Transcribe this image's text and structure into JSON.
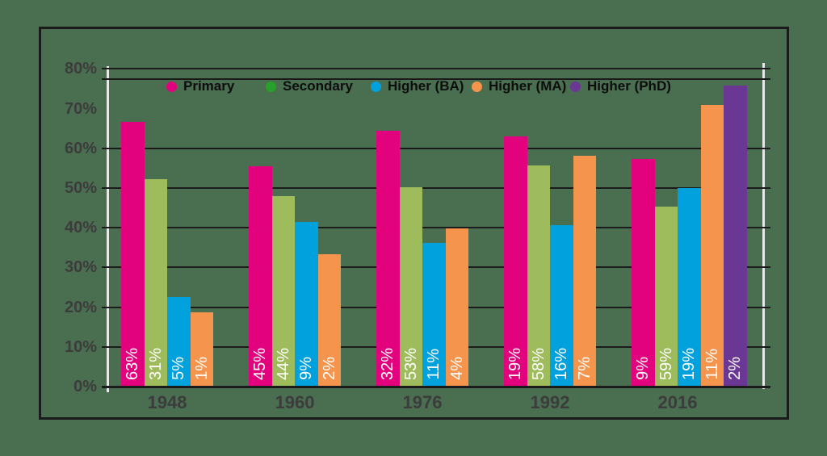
{
  "background_color": "#4a6e50",
  "frame_color": "#1b1b1b",
  "chart_data": {
    "type": "bar",
    "title": "",
    "categories": [
      "1948",
      "1960",
      "1976",
      "1992",
      "2016"
    ],
    "series": [
      {
        "name": "Primary",
        "color": "#e2027d",
        "legend_dot_color": "#e2027d",
        "bar_labels": [
          "63%",
          "45%",
          "32%",
          "19%",
          "9%"
        ],
        "bar_heights_pct": [
          66.5,
          55.2,
          64.3,
          62.9,
          57.2
        ]
      },
      {
        "name": "Secondary",
        "color": "#9ebc5c",
        "legend_dot_color": "#27a127",
        "bar_labels": [
          "31%",
          "44%",
          "53%",
          "58%",
          "59%"
        ],
        "bar_heights_pct": [
          52.0,
          47.8,
          50.1,
          55.4,
          45.2
        ]
      },
      {
        "name": "Higher (BA)",
        "color": "#00a1dd",
        "legend_dot_color": "#00a1dd",
        "bar_labels": [
          "5%",
          "9%",
          "11%",
          "16%",
          "19%"
        ],
        "bar_heights_pct": [
          22.4,
          41.3,
          36.0,
          40.5,
          49.7
        ]
      },
      {
        "name": "Higher (MA)",
        "color": "#f5954d",
        "legend_dot_color": "#f5954d",
        "bar_labels": [
          "1%",
          "2%",
          "4%",
          "7%",
          "11%"
        ],
        "bar_heights_pct": [
          18.5,
          33.2,
          39.7,
          58.0,
          70.7
        ]
      },
      {
        "name": "Higher (PhD)",
        "color": "#6b3795",
        "legend_dot_color": "#6b3795",
        "bar_labels": [
          null,
          null,
          null,
          null,
          "2%"
        ],
        "bar_heights_pct": [
          null,
          null,
          null,
          null,
          75.7
        ]
      }
    ],
    "y_axis": {
      "ticks": [
        "0%",
        "10%",
        "20%",
        "30%",
        "40%",
        "50%",
        "60%",
        "70%",
        "80%"
      ],
      "tick_values": [
        0,
        10,
        20,
        30,
        40,
        50,
        60,
        70,
        80
      ],
      "ylim": [
        0,
        80
      ],
      "gridline_values": [
        0,
        10,
        20,
        30,
        40,
        50,
        60,
        80
      ],
      "extra_top_gridline_value": 77.5,
      "label_color": "#3c3c3c",
      "axis_line_color": "#e9e9e9",
      "gridline_color": "#1b1b1b"
    },
    "x_axis": {
      "label_color": "#3c3c3c"
    },
    "bar_label_color": "#ffffff",
    "legend_position": "top",
    "grid": true
  }
}
